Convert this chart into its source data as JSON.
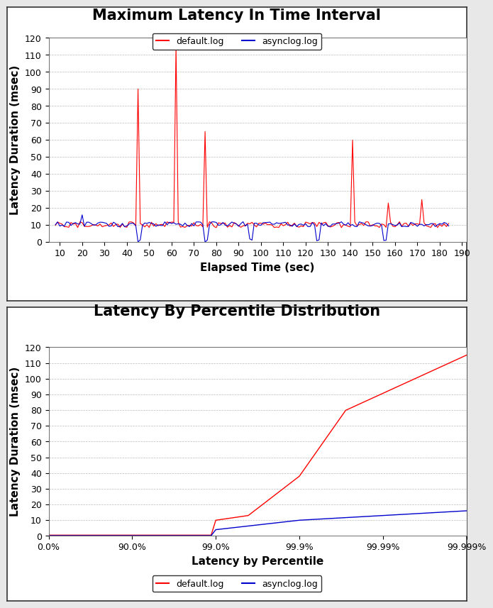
{
  "chart1": {
    "title": "Maximum Latency In Time Interval",
    "xlabel": "Elapsed Time (sec)",
    "ylabel": "Latency Duration (msec)",
    "xlim": [
      5,
      192
    ],
    "ylim": [
      0,
      120
    ],
    "yticks": [
      0,
      10,
      20,
      30,
      40,
      50,
      60,
      70,
      80,
      90,
      100,
      110,
      120
    ],
    "xticks": [
      10,
      20,
      30,
      40,
      50,
      60,
      70,
      80,
      90,
      100,
      110,
      120,
      130,
      140,
      150,
      160,
      170,
      180,
      190
    ],
    "default_color": "#ff0000",
    "async_color": "#0000cc",
    "legend_labels": [
      "default.log",
      "asynclog.log"
    ]
  },
  "chart2": {
    "title": "Latency By Percentile Distribution",
    "xlabel": "Latency by Percentile",
    "ylabel": "Latency Duration (msec)",
    "ylim": [
      0,
      120
    ],
    "yticks": [
      0,
      10,
      20,
      30,
      40,
      50,
      60,
      70,
      80,
      90,
      100,
      110,
      120
    ],
    "xtick_positions": [
      0,
      1,
      2,
      3,
      4,
      5
    ],
    "xtick_labels": [
      "0.0%",
      "90.0%",
      "99.0%",
      "99.9%",
      "99.99%",
      "99.999%"
    ],
    "default_color": "#ff0000",
    "async_color": "#0000cc",
    "legend_labels": [
      "default.log",
      "asynclog.log"
    ]
  },
  "bg_color": "#ffffff",
  "outer_bg": "#f0f0f0",
  "grid_color": "#aaaaaa",
  "title_fontsize": 15,
  "label_fontsize": 11,
  "tick_fontsize": 9,
  "legend_fontsize": 9
}
